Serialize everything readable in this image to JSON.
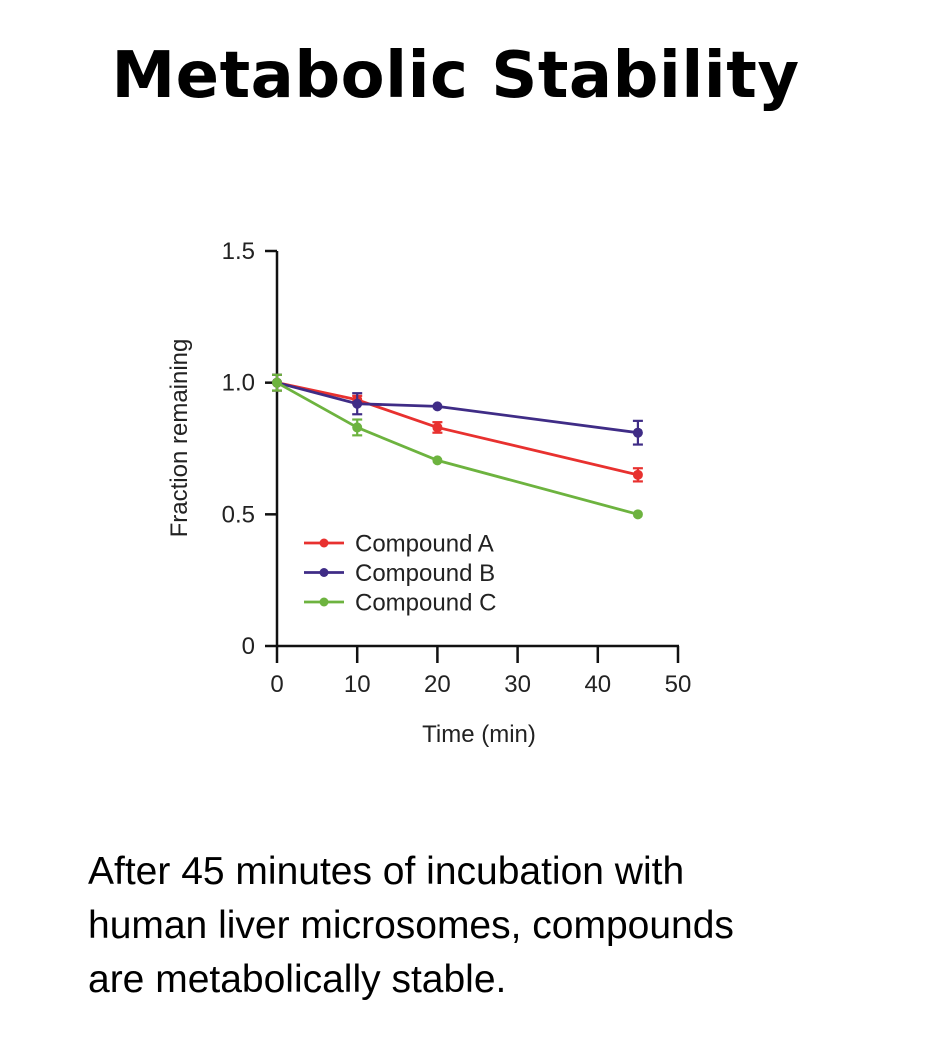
{
  "page": {
    "title": "Metabolic Stability",
    "caption_lines": [
      "After 45 minutes of incubation with",
      "human liver microsomes, compounds",
      "are metabolically stable."
    ]
  },
  "chart_data": {
    "type": "line",
    "title": "",
    "xlabel": "Time (min)",
    "ylabel": "Fraction remaining",
    "xlim": [
      0,
      50
    ],
    "ylim": [
      0,
      1.5
    ],
    "xticks": [
      0,
      10,
      20,
      30,
      40,
      50
    ],
    "xtick_labels": [
      "0",
      "10",
      "20",
      "30",
      "40",
      "50"
    ],
    "yticks": [
      0,
      0.5,
      1.0,
      1.5
    ],
    "ytick_labels": [
      "0",
      "0.5",
      "1.0",
      "1.5"
    ],
    "grid": false,
    "legend_position": "lower-left",
    "x": [
      0,
      10,
      20,
      45
    ],
    "series": [
      {
        "name": "Compound A",
        "color": "#E8312F",
        "values": [
          1.0,
          0.935,
          0.83,
          0.65
        ],
        "errors": [
          0.03,
          0.015,
          0.02,
          0.025
        ]
      },
      {
        "name": "Compound B",
        "color": "#3F2C86",
        "values": [
          1.0,
          0.92,
          0.91,
          0.81
        ],
        "errors": [
          0.03,
          0.04,
          0.0,
          0.045
        ]
      },
      {
        "name": "Compound C",
        "color": "#6DB33F",
        "values": [
          1.0,
          0.83,
          0.705,
          0.5
        ],
        "errors": [
          0.03,
          0.03,
          0.0,
          0.0
        ]
      }
    ]
  }
}
